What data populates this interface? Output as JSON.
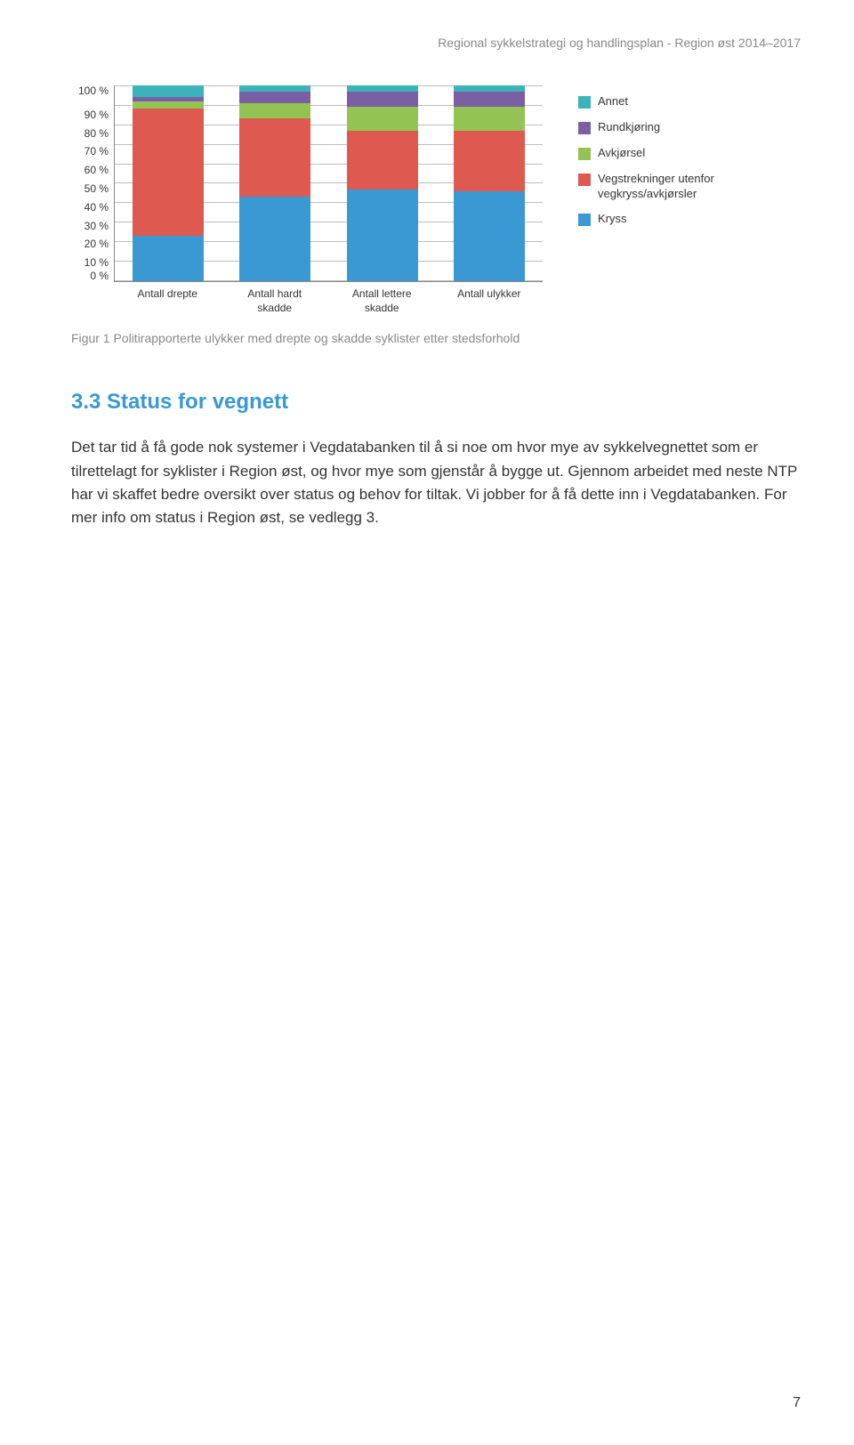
{
  "header": {
    "text": "Regional sykkelstrategi og handlingsplan - Region øst 2014–2017"
  },
  "chart": {
    "type": "stacked-bar",
    "ylim": [
      0,
      100
    ],
    "ytick_step": 10,
    "yticks": [
      "100 %",
      "90 %",
      "80 %",
      "70 %",
      "60 %",
      "50 %",
      "40 %",
      "30 %",
      "20 %",
      "10 %",
      "0 %"
    ],
    "grid_color": "#bdbdbd",
    "axis_color": "#888888",
    "background_color": "#ffffff",
    "categories": [
      {
        "label_line1": "Antall drepte",
        "label_line2": ""
      },
      {
        "label_line1": "Antall hardt",
        "label_line2": "skadde"
      },
      {
        "label_line1": "Antall lettere",
        "label_line2": "skadde"
      },
      {
        "label_line1": "Antall ulykker",
        "label_line2": ""
      }
    ],
    "series_order": [
      "kryss",
      "vegstrekninger",
      "avkjorsel",
      "rundkjoring",
      "annet"
    ],
    "series_colors": {
      "kryss": "#3a98d3",
      "vegstrekninger": "#de5a51",
      "avkjorsel": "#93c453",
      "rundkjoring": "#7b5fa4",
      "annet": "#3cb3ba"
    },
    "data": [
      {
        "kryss": 23,
        "vegstrekninger": 65,
        "avkjorsel": 4,
        "rundkjoring": 2,
        "annet": 6
      },
      {
        "kryss": 43,
        "vegstrekninger": 40,
        "avkjorsel": 8,
        "rundkjoring": 6,
        "annet": 3
      },
      {
        "kryss": 47,
        "vegstrekninger": 30,
        "avkjorsel": 12,
        "rundkjoring": 8,
        "annet": 3
      },
      {
        "kryss": 46,
        "vegstrekninger": 31,
        "avkjorsel": 12,
        "rundkjoring": 8,
        "annet": 3
      }
    ],
    "legend": [
      {
        "key": "annet",
        "label": "Annet"
      },
      {
        "key": "rundkjoring",
        "label": "Rundkjøring"
      },
      {
        "key": "avkjorsel",
        "label": "Avkjørsel"
      },
      {
        "key": "vegstrekninger",
        "label": "Vegstrekninger utenfor vegkryss/avkjørsler"
      },
      {
        "key": "kryss",
        "label": "Kryss"
      }
    ]
  },
  "figure_caption": "Figur 1 Politirapporterte ulykker med drepte og skadde syklister etter stedsforhold",
  "section": {
    "heading": "3.3 Status for vegnett",
    "heading_color": "#3a98d3",
    "body": "Det tar tid å få gode nok systemer i Vegdatabanken til å si noe om hvor mye av sykkelvegnettet som er tilrettelagt for syklister i Region øst, og hvor mye som gjenstår å bygge ut. Gjennom arbeidet med neste NTP har vi skaffet bedre oversikt over status og behov for tiltak. Vi jobber for å få dette inn i Vegdatabanken. For mer info om status i Region øst, se vedlegg 3."
  },
  "page_number": "7"
}
